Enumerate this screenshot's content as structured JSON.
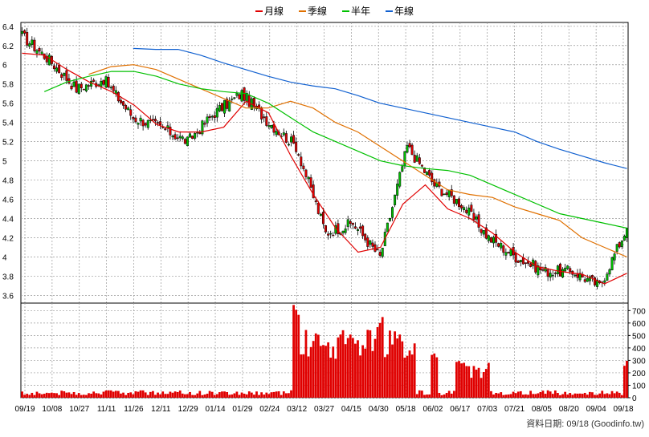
{
  "legend": [
    {
      "label": "月線",
      "color": "#e00000"
    },
    {
      "label": "季線",
      "color": "#e07000"
    },
    {
      "label": "半年",
      "color": "#00c000"
    },
    {
      "label": "年線",
      "color": "#1060d0"
    }
  ],
  "footer_text": "資料日期: 09/18  (Goodinfo.tw)",
  "chart_data": [
    {
      "type": "candlestick",
      "y_ticks": [
        6.4,
        6.2,
        6,
        5.8,
        5.6,
        5.4,
        5.2,
        5,
        4.8,
        4.6,
        4.4,
        4.2,
        4,
        3.8,
        3.6
      ],
      "ylim": [
        3.52,
        6.44
      ],
      "x_ticks": [
        "09/19",
        "10/08",
        "10/27",
        "11/11",
        "11/26",
        "12/11",
        "12/29",
        "01/14",
        "01/29",
        "02/24",
        "03/12",
        "03/27",
        "04/15",
        "04/30",
        "05/18",
        "06/02",
        "06/17",
        "07/03",
        "07/21",
        "08/05",
        "08/20",
        "09/04",
        "09/18"
      ],
      "grid": true,
      "up_color": "#00c000",
      "down_color": "#e00000",
      "key_closes": [
        {
          "date": "09/19",
          "close": 6.3
        },
        {
          "date": "10/08",
          "close": 6.05
        },
        {
          "date": "10/27",
          "close": 5.75
        },
        {
          "date": "11/11",
          "close": 5.85
        },
        {
          "date": "11/26",
          "close": 5.45
        },
        {
          "date": "12/11",
          "close": 5.35
        },
        {
          "date": "12/29",
          "close": 5.2
        },
        {
          "date": "01/14",
          "close": 5.5
        },
        {
          "date": "01/29",
          "close": 5.7
        },
        {
          "date": "02/24",
          "close": 5.4
        },
        {
          "date": "03/12",
          "close": 5.15
        },
        {
          "date": "03/27",
          "close": 4.25
        },
        {
          "date": "04/15",
          "close": 4.35
        },
        {
          "date": "04/30",
          "close": 4.0
        },
        {
          "date": "05/18",
          "close": 5.15
        },
        {
          "date": "06/02",
          "close": 4.75
        },
        {
          "date": "06/17",
          "close": 4.55
        },
        {
          "date": "07/03",
          "close": 4.2
        },
        {
          "date": "07/21",
          "close": 4.0
        },
        {
          "date": "08/05",
          "close": 3.85
        },
        {
          "date": "08/20",
          "close": 3.85
        },
        {
          "date": "09/04",
          "close": 3.7
        },
        {
          "date": "09/18",
          "close": 4.3
        }
      ],
      "moving_averages": [
        {
          "name": "月線",
          "color": "#e00000",
          "values": [
            6.12,
            6.1,
            5.95,
            5.82,
            5.72,
            5.58,
            5.38,
            5.3,
            5.3,
            5.35,
            5.62,
            5.5,
            5.05,
            4.65,
            4.3,
            4.05,
            4.1,
            4.55,
            4.75,
            4.5,
            4.4,
            4.25,
            4.05,
            3.9,
            3.85,
            3.82,
            3.72,
            3.83
          ]
        },
        {
          "name": "季線",
          "color": "#e07000",
          "values": [
            5.9,
            5.98,
            6.0,
            5.95,
            5.85,
            5.75,
            5.65,
            5.55,
            5.55,
            5.62,
            5.55,
            5.4,
            5.3,
            5.15,
            5.0,
            4.85,
            4.7,
            4.65,
            4.62,
            4.52,
            4.45,
            4.38,
            4.2,
            4.1,
            4.0
          ]
        },
        {
          "name": "半年",
          "color": "#00c000",
          "values": [
            5.72,
            5.82,
            5.88,
            5.93,
            5.93,
            5.88,
            5.8,
            5.75,
            5.72,
            5.7,
            5.6,
            5.45,
            5.3,
            5.2,
            5.1,
            5.0,
            4.95,
            4.92,
            4.9,
            4.85,
            4.75,
            4.65,
            4.55,
            4.45,
            4.4,
            4.35,
            4.3
          ]
        },
        {
          "name": "年線",
          "color": "#1060d0",
          "values": [
            6.17,
            6.16,
            6.16,
            6.1,
            6.02,
            5.95,
            5.88,
            5.82,
            5.78,
            5.75,
            5.68,
            5.6,
            5.55,
            5.5,
            5.45,
            5.4,
            5.35,
            5.3,
            5.2,
            5.12,
            5.05,
            4.98,
            4.92
          ]
        }
      ]
    },
    {
      "type": "bar",
      "y_ticks": [
        700,
        600,
        500,
        400,
        300,
        200,
        100,
        0
      ],
      "ylim": [
        0,
        760
      ],
      "bar_color": "#e00000",
      "notable_volumes": [
        {
          "date": "03/12",
          "value": 750
        },
        {
          "date": "04/15",
          "value": 520
        },
        {
          "date": "04/30",
          "value": 680
        },
        {
          "date": "06/02",
          "value": 360
        },
        {
          "date": "09/18",
          "value": 300
        }
      ]
    }
  ]
}
